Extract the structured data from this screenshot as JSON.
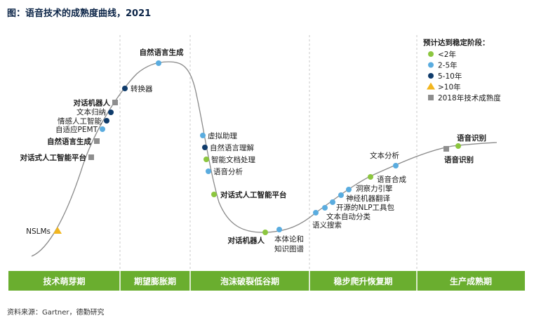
{
  "title": "图：语音技术的成熟度曲线，2021",
  "source": "资料来源：Gartner，德勤研究",
  "colors": {
    "phase_bar": "#6aae2f",
    "curve": "#8a8a8a",
    "divider": "#c8c8c8",
    "lt2": "#8cc63f",
    "y2to5": "#5aacdf",
    "y5to10": "#0f3b6b",
    "gt10": "#f2b61f",
    "y2018": "#8e8e8e"
  },
  "legend": {
    "title": "预计达到稳定阶段：",
    "items": [
      {
        "label": "<2年",
        "shape": "circle",
        "color_key": "lt2"
      },
      {
        "label": "2-5年",
        "shape": "circle",
        "color_key": "y2to5"
      },
      {
        "label": "5-10年",
        "shape": "circle",
        "color_key": "y5to10"
      },
      {
        "label": ">10年",
        "shape": "triangle",
        "color_key": "gt10"
      },
      {
        "label": "2018年技术成熟度",
        "shape": "square",
        "color_key": "y2018"
      }
    ]
  },
  "chart_data": {
    "type": "scatter",
    "title": "图：语音技术的成熟度曲线，2021",
    "x_axis": "hype cycle phase (no numeric scale)",
    "y_axis": "expectations (no numeric scale)",
    "grid": false,
    "legend_position": "top-right",
    "phases": [
      "技术萌芽期",
      "期望膨胀期",
      "泡沫破裂低谷期",
      "稳步爬升恢复期",
      "生产成熟期"
    ],
    "points": [
      {
        "label": "NSLMs",
        "phase": "技术萌芽期",
        "category": ">10年",
        "bold": false
      },
      {
        "label": "对话式人工智能平台",
        "phase": "技术萌芽期",
        "category": "2018年技术成熟度",
        "bold": true
      },
      {
        "label": "自然语言生成",
        "phase": "技术萌芽期",
        "category": "2018年技术成熟度",
        "bold": true
      },
      {
        "label": "自适应PEMT",
        "phase": "技术萌芽期",
        "category": "2-5年",
        "bold": false
      },
      {
        "label": "情感人工智能",
        "phase": "技术萌芽期",
        "category": "5-10年",
        "bold": false
      },
      {
        "label": "文本归纳",
        "phase": "技术萌芽期",
        "category": "5-10年",
        "bold": false
      },
      {
        "label": "对话机器人",
        "phase": "技术萌芽期",
        "category": "2018年技术成熟度",
        "bold": true
      },
      {
        "label": "转换器",
        "phase": "期望膨胀期",
        "category": "5-10年",
        "bold": false
      },
      {
        "label": "自然语言生成",
        "phase": "期望膨胀期",
        "category": "2-5年",
        "bold": true
      },
      {
        "label": "虚拟助理",
        "phase": "泡沫破裂低谷期",
        "category": "2-5年",
        "bold": false
      },
      {
        "label": "自然语言理解",
        "phase": "泡沫破裂低谷期",
        "category": "5-10年",
        "bold": false
      },
      {
        "label": "智能文档处理",
        "phase": "泡沫破裂低谷期",
        "category": "<2年",
        "bold": false
      },
      {
        "label": "语音分析",
        "phase": "泡沫破裂低谷期",
        "category": "2-5年",
        "bold": false
      },
      {
        "label": "对话式人工智能平台",
        "phase": "泡沫破裂低谷期",
        "category": "<2年",
        "bold": true
      },
      {
        "label": "对话机器人",
        "phase": "泡沫破裂低谷期",
        "category": "<2年",
        "bold": true
      },
      {
        "label": "本体论和\n知识图谱",
        "phase": "泡沫破裂低谷期",
        "category": "2-5年",
        "bold": false
      },
      {
        "label": "语义搜索",
        "phase": "稳步爬升恢复期",
        "category": "2-5年",
        "bold": false
      },
      {
        "label": "文本自动分类",
        "phase": "稳步爬升恢复期",
        "category": "2-5年",
        "bold": false
      },
      {
        "label": "开源的NLP工具包",
        "phase": "稳步爬升恢复期",
        "category": "2-5年",
        "bold": false
      },
      {
        "label": "神经机器翻译",
        "phase": "稳步爬升恢复期",
        "category": "2-5年",
        "bold": false
      },
      {
        "label": "洞察力引擎",
        "phase": "稳步爬升恢复期",
        "category": "2-5年",
        "bold": false
      },
      {
        "label": "语音合成",
        "phase": "稳步爬升恢复期",
        "category": "<2年",
        "bold": false
      },
      {
        "label": "文本分析",
        "phase": "稳步爬升恢复期",
        "category": "2-5年",
        "bold": false
      },
      {
        "label": "语音识别",
        "phase": "生产成熟期",
        "category": "2018年技术成熟度",
        "bold": true
      },
      {
        "label": "语音识别",
        "phase": "生产成熟期",
        "category": "<2年",
        "bold": true
      }
    ]
  }
}
